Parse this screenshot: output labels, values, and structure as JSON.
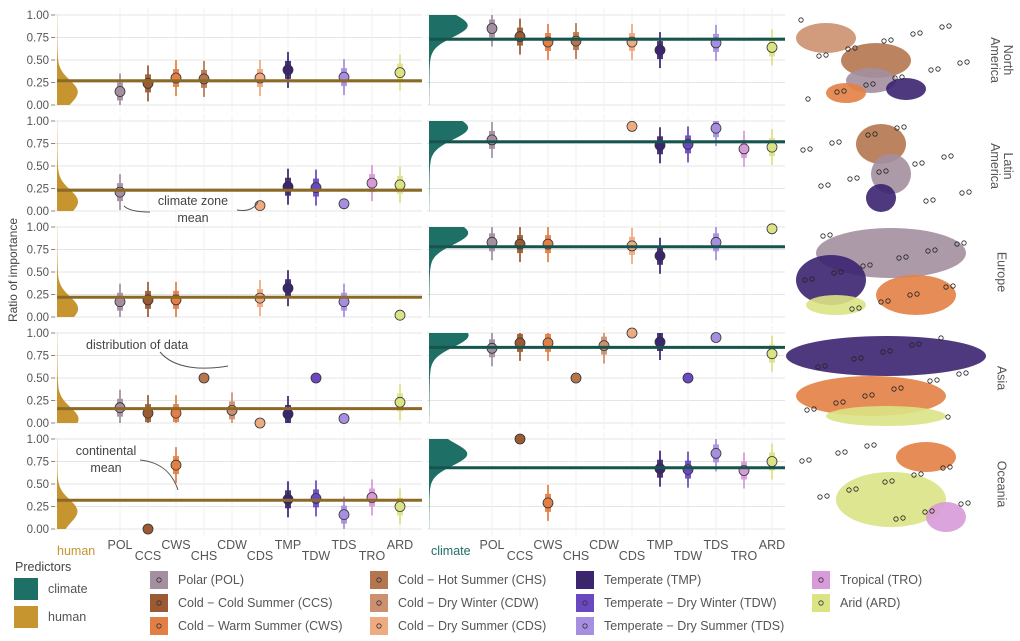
{
  "chart_data": {
    "type": "violin-pointrange",
    "ylabel": "Ratio of importance",
    "y_ticks": [
      "0.00",
      "0.25",
      "0.50",
      "0.75",
      "1.00"
    ],
    "ylim": [
      0,
      1
    ],
    "grid": true,
    "regions": [
      "North America",
      "Latin America",
      "Europe",
      "Asia",
      "Oceania"
    ],
    "region_label_lines": [
      [
        "North",
        "America"
      ],
      [
        "Latin",
        "America"
      ],
      [
        "Europe"
      ],
      [
        "Asia"
      ],
      [
        "Oceania"
      ]
    ],
    "zones": [
      "POL",
      "CCS",
      "CWS",
      "CHS",
      "CDW",
      "CDS",
      "TMP",
      "TDW",
      "TDS",
      "TRO",
      "ARD"
    ],
    "zone_colors": {
      "POL": "#a38fa0",
      "CCS": "#9b5a33",
      "CWS": "#e37f45",
      "CHS": "#b5764f",
      "CDW": "#cc9070",
      "CDS": "#eeaa80",
      "TMP": "#3b2470",
      "TDW": "#6a49c0",
      "TDS": "#a68fe0",
      "TRO": "#d89ad8",
      "ARD": "#dce385"
    },
    "predictor_colors": {
      "climate": "#1e6f66",
      "human": "#c69530"
    },
    "left_bottom_label": "human",
    "right_bottom_label": "climate",
    "continental_mean_human": [
      0.27,
      0.23,
      0.22,
      0.16,
      0.32
    ],
    "continental_mean_climate": [
      0.73,
      0.77,
      0.78,
      0.84,
      0.68
    ],
    "zone_means_human": [
      {
        "POL": 0.15,
        "CCS": 0.24,
        "CWS": 0.3,
        "CHS": 0.29,
        "CDS": 0.3,
        "TMP": 0.39,
        "TDS": 0.31,
        "ARD": 0.36
      },
      {
        "POL": 0.21,
        "CDS": 0.06,
        "TMP": 0.27,
        "TDW": 0.26,
        "TDS": 0.08,
        "TRO": 0.31,
        "ARD": 0.29
      },
      {
        "POL": 0.17,
        "CCS": 0.19,
        "CWS": 0.19,
        "CDS": 0.21,
        "TMP": 0.32,
        "TDS": 0.17,
        "ARD": 0.02
      },
      {
        "POL": 0.17,
        "CCS": 0.11,
        "CWS": 0.11,
        "CHS": 0.5,
        "CDW": 0.14,
        "CDS": 0.0,
        "TMP": 0.1,
        "TDW": 0.5,
        "TDS": 0.05,
        "ARD": 0.23
      },
      {
        "CCS": 0.0,
        "CWS": 0.71,
        "TMP": 0.33,
        "TDW": 0.34,
        "TDS": 0.16,
        "TRO": 0.35,
        "ARD": 0.25
      }
    ],
    "zone_means_climate": [
      {
        "POL": 0.85,
        "CCS": 0.76,
        "CWS": 0.7,
        "CHS": 0.71,
        "CDS": 0.7,
        "TMP": 0.61,
        "TDS": 0.69,
        "ARD": 0.64
      },
      {
        "POL": 0.79,
        "CDS": 0.94,
        "TMP": 0.73,
        "TDW": 0.74,
        "TDS": 0.92,
        "TRO": 0.69,
        "ARD": 0.71
      },
      {
        "POL": 0.83,
        "CCS": 0.81,
        "CWS": 0.81,
        "CDS": 0.79,
        "TMP": 0.68,
        "TDS": 0.83,
        "ARD": 0.98
      },
      {
        "POL": 0.83,
        "CCS": 0.89,
        "CWS": 0.89,
        "CHS": 0.5,
        "CDW": 0.86,
        "CDS": 1.0,
        "TMP": 0.9,
        "TDW": 0.5,
        "TDS": 0.95,
        "ARD": 0.77
      },
      {
        "CCS": 1.0,
        "CWS": 0.29,
        "TMP": 0.67,
        "TDW": 0.66,
        "TDS": 0.84,
        "TRO": 0.65,
        "ARD": 0.75
      }
    ],
    "annotations": [
      {
        "region": "Latin America",
        "lines": [
          "climate zone",
          "mean"
        ]
      },
      {
        "region": "Asia",
        "lines": [
          "distribution of data"
        ]
      },
      {
        "region": "Oceania",
        "lines": [
          "continental",
          "mean"
        ]
      }
    ],
    "legend": {
      "predictors_title": "Predictors",
      "predictors": [
        "climate",
        "human"
      ],
      "zones": [
        "Polar (POL)",
        "Cold − Cold Summer (CCS)",
        "Cold − Warm Summer (CWS)",
        "Cold − Hot Summer (CHS)",
        "Cold − Dry Winter (CDW)",
        "Cold − Dry Summer (CDS)",
        "Temperate (TMP)",
        "Temperate − Dry Winter (TDW)",
        "Temperate − Dry Summer (TDS)",
        "Tropical (TRO)",
        "Arid (ARD)"
      ]
    }
  }
}
